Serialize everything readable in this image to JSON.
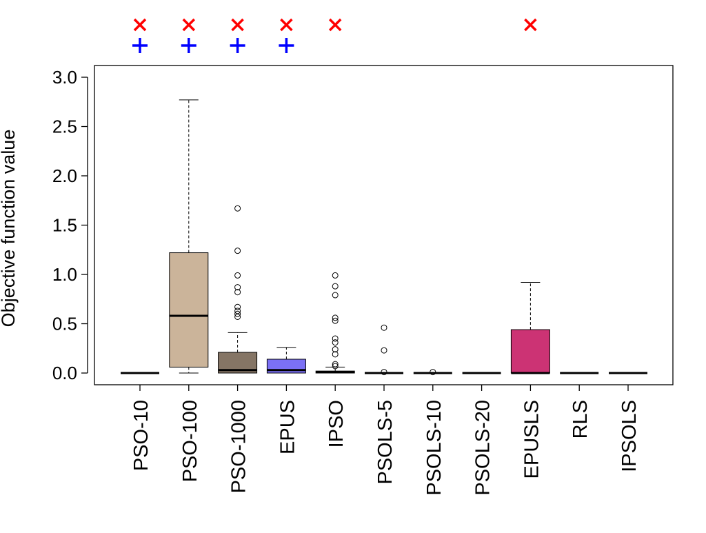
{
  "chart_data": {
    "type": "box",
    "xlabel": "",
    "ylabel": "Objective function value",
    "ylim": [
      -0.12,
      3.12
    ],
    "yticks": [
      "0.0",
      "0.5",
      "1.0",
      "1.5",
      "2.0",
      "2.5",
      "3.0"
    ],
    "categories": [
      "PSO-10",
      "PSO-100",
      "PSO-1000",
      "EPUS",
      "IPSO",
      "PSOLS-5",
      "PSOLS-10",
      "PSOLS-20",
      "EPUSLS",
      "RLS",
      "IPSOLS"
    ],
    "boxes": [
      {
        "category": "PSO-10",
        "min": 0,
        "q1": 0,
        "median": 0,
        "q3": 0,
        "max": 0,
        "outliers": [],
        "fill": "#ffffff",
        "marker_x": true,
        "marker_plus": true
      },
      {
        "category": "PSO-100",
        "min": 0,
        "q1": 0.06,
        "median": 0.58,
        "q3": 1.22,
        "max": 2.77,
        "outliers": [],
        "fill": "#cbb49a",
        "marker_x": true,
        "marker_plus": true
      },
      {
        "category": "PSO-1000",
        "min": 0,
        "q1": 0.0,
        "median": 0.03,
        "q3": 0.21,
        "max": 0.41,
        "outliers": [
          0.57,
          0.6,
          0.63,
          0.67,
          0.82,
          0.87,
          0.99,
          1.24,
          1.67
        ],
        "fill": "#857565",
        "marker_x": true,
        "marker_plus": true
      },
      {
        "category": "EPUS",
        "min": 0,
        "q1": 0.0,
        "median": 0.03,
        "q3": 0.14,
        "max": 0.26,
        "outliers": [],
        "fill": "#7b70f5",
        "marker_x": true,
        "marker_plus": true
      },
      {
        "category": "IPSO",
        "min": 0,
        "q1": 0.0,
        "median": 0.01,
        "q3": 0.02,
        "max": 0.06,
        "outliers": [
          0.07,
          0.09,
          0.19,
          0.24,
          0.31,
          0.35,
          0.53,
          0.56,
          0.79,
          0.88,
          0.99
        ],
        "fill": "#ffffff",
        "marker_x": true,
        "marker_plus": false
      },
      {
        "category": "PSOLS-5",
        "min": 0,
        "q1": 0,
        "median": 0,
        "q3": 0,
        "max": 0,
        "outliers": [
          0.01,
          0.23,
          0.46
        ],
        "fill": "#ffffff",
        "marker_x": false,
        "marker_plus": false
      },
      {
        "category": "PSOLS-10",
        "min": 0,
        "q1": 0,
        "median": 0,
        "q3": 0,
        "max": 0,
        "outliers": [
          0.01
        ],
        "fill": "#ffffff",
        "marker_x": false,
        "marker_plus": false
      },
      {
        "category": "PSOLS-20",
        "min": 0,
        "q1": 0,
        "median": 0,
        "q3": 0,
        "max": 0,
        "outliers": [],
        "fill": "#ffffff",
        "marker_x": false,
        "marker_plus": false
      },
      {
        "category": "EPUSLS",
        "min": 0,
        "q1": 0,
        "median": 0,
        "q3": 0.44,
        "max": 0.92,
        "outliers": [],
        "fill": "#cc3374",
        "marker_x": true,
        "marker_plus": false
      },
      {
        "category": "RLS",
        "min": 0,
        "q1": 0,
        "median": 0,
        "q3": 0,
        "max": 0,
        "outliers": [],
        "fill": "#ffffff",
        "marker_x": false,
        "marker_plus": false
      },
      {
        "category": "IPSOLS",
        "min": 0,
        "q1": 0,
        "median": 0,
        "q3": 0,
        "max": 0,
        "outliers": [],
        "fill": "#ffffff",
        "marker_x": false,
        "marker_plus": false
      }
    ],
    "marker_colors": {
      "x": "#ff0000",
      "plus": "#0000ff"
    },
    "grid": false,
    "legend": "none"
  }
}
